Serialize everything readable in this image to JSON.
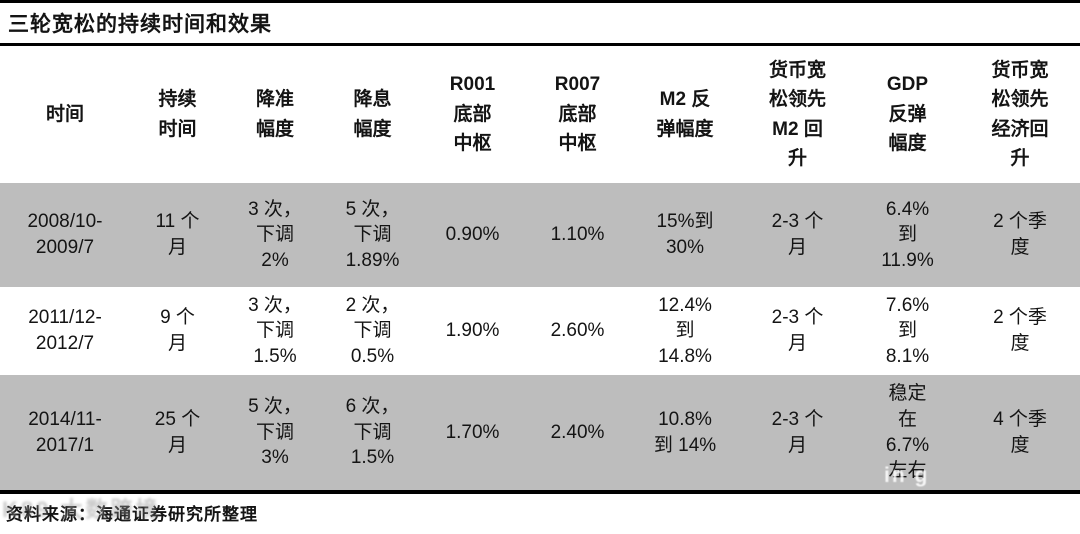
{
  "title": "三轮宽松的持续时间和效果",
  "source": {
    "text": "资料来源：海通证券研究所整理"
  },
  "watermarks": {
    "bottom_left": "K89 大数跨境",
    "row3_white": "in g"
  },
  "colors": {
    "row_shade": "#bdbdbd",
    "border": "#000000",
    "background": "#ffffff"
  },
  "table": {
    "columns": [
      {
        "key": "time",
        "label": "时间"
      },
      {
        "key": "duration",
        "label": "持续\n时间"
      },
      {
        "key": "rrr_cut",
        "label": "降准\n幅度"
      },
      {
        "key": "rate_cut",
        "label": "降息\n幅度"
      },
      {
        "key": "r001_bottom",
        "label": "R001\n底部\n中枢"
      },
      {
        "key": "r007_bottom",
        "label": "R007\n底部\n中枢"
      },
      {
        "key": "m2_rebound",
        "label": "M2 反\n弹幅度"
      },
      {
        "key": "easing_leads_m2",
        "label": "货币宽\n松领先\nM2 回\n升"
      },
      {
        "key": "gdp_rebound",
        "label": "GDP\n反弹\n幅度"
      },
      {
        "key": "easing_leads_econ",
        "label": "货币宽\n松领先\n经济回\n升"
      }
    ],
    "rows": [
      {
        "cells": [
          "2008/10-\n2009/7",
          "11 个\n月",
          "3 次，\n下调\n2%",
          "5 次，\n下调\n1.89%",
          "0.90%",
          "1.10%",
          "15%到\n30%",
          "2-3 个\n月",
          "6.4%\n到\n11.9%",
          "2 个季\n度"
        ]
      },
      {
        "cells": [
          "2011/12-\n2012/7",
          "9 个\n月",
          "3 次，\n下调\n1.5%",
          "2 次，\n下调\n0.5%",
          "1.90%",
          "2.60%",
          "12.4%\n到\n14.8%",
          "2-3 个\n月",
          "7.6%\n到\n8.1%",
          "2 个季\n度"
        ]
      },
      {
        "cells": [
          "2014/11-\n2017/1",
          "25 个\n月",
          "5 次，\n下调\n3%",
          "6 次，\n下调\n1.5%",
          "1.70%",
          "2.40%",
          "10.8%\n到 14%",
          "2-3 个\n月",
          "稳定\n在\n6.7%\n左右",
          "4 个季\n度"
        ]
      }
    ]
  }
}
